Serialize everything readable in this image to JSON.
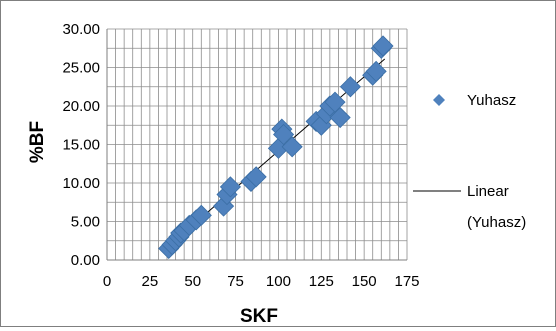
{
  "chart_data": {
    "type": "scatter",
    "title": "",
    "xlabel": "SKF",
    "ylabel": "%BF",
    "xlim": [
      0,
      175
    ],
    "ylim": [
      0,
      30
    ],
    "x_ticks": [
      "0",
      "25",
      "50",
      "75",
      "100",
      "125",
      "150",
      "175"
    ],
    "y_ticks": [
      "0.00",
      "5.00",
      "10.00",
      "15.00",
      "20.00",
      "25.00",
      "30.00"
    ],
    "grid": {
      "vertical_minor_step": 5,
      "horizontal_step": 2.5
    },
    "legend_position": "right",
    "colors": {
      "marker": "#4F81BD",
      "trendline": "#000000",
      "grid": "#8c8c8c"
    },
    "series": [
      {
        "name": "Yuhasz",
        "marker": "diamond",
        "points": [
          [
            36,
            1.5
          ],
          [
            38,
            2.0
          ],
          [
            40,
            2.5
          ],
          [
            42,
            3.0
          ],
          [
            43,
            3.5
          ],
          [
            45,
            3.8
          ],
          [
            48,
            4.5
          ],
          [
            52,
            5.2
          ],
          [
            55,
            5.8
          ],
          [
            68,
            7.0
          ],
          [
            70,
            8.5
          ],
          [
            72,
            9.5
          ],
          [
            84,
            10.2
          ],
          [
            87,
            10.8
          ],
          [
            100,
            14.5
          ],
          [
            102,
            17.0
          ],
          [
            103,
            16.3
          ],
          [
            108,
            14.7
          ],
          [
            122,
            18.0
          ],
          [
            125,
            17.5
          ],
          [
            128,
            19.0
          ],
          [
            130,
            20.0
          ],
          [
            133,
            20.5
          ],
          [
            136,
            18.5
          ],
          [
            142,
            22.5
          ],
          [
            155,
            24.0
          ],
          [
            157,
            24.5
          ],
          [
            160,
            27.5
          ],
          [
            161,
            27.8
          ]
        ]
      }
    ],
    "trendline": {
      "name": "Linear (Yuhasz)",
      "type": "linear",
      "x_range": [
        37,
        162
      ]
    }
  }
}
